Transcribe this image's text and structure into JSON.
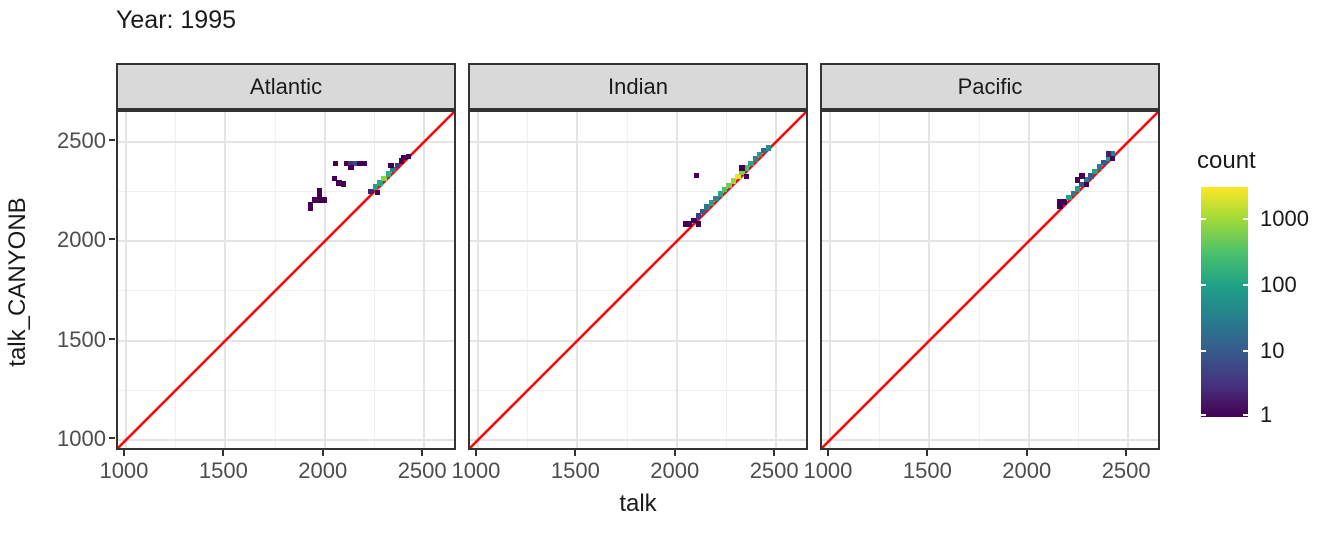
{
  "title": "Year: 1995",
  "axis": {
    "x_title": "talk",
    "y_title": "talk_CANYONB"
  },
  "legend": {
    "title": "count",
    "tick_labels": [
      "1000",
      "100",
      "10",
      "1"
    ]
  },
  "colors": {
    "reference_line": "#f20d0d",
    "strip_fill": "#d9d9d9",
    "panel_border": "#333333",
    "grid_major": "#e4e4e4",
    "grid_minor": "#f0f0f0",
    "tick_text": "#4d4d4d",
    "viridis_min": "#440154",
    "viridis_max": "#fde725"
  },
  "chart_data": {
    "type": "heatmap",
    "variant": "2d binned scatter (geom_bin2d), faceted by ocean",
    "title": "Year: 1995",
    "xlabel": "talk",
    "ylabel": "talk_CANYONB",
    "xlim": [
      960,
      2650
    ],
    "ylim": [
      960,
      2650
    ],
    "x_ticks": [
      1000,
      1500,
      2000,
      2500
    ],
    "y_ticks": [
      1000,
      1500,
      2000,
      2500
    ],
    "x_minor_ticks": [
      1250,
      1750,
      2250
    ],
    "y_minor_ticks": [
      1250,
      1750,
      2250
    ],
    "grid": true,
    "bin_size": 22,
    "reference_line": "y = x",
    "color_scale": {
      "palette": "viridis",
      "label": "count",
      "scale": "log10",
      "ticks": [
        1,
        10,
        100,
        1000
      ],
      "domain": [
        1,
        3000
      ],
      "legend_position": "right"
    },
    "facets": [
      {
        "label": "Atlantic",
        "cells": [
          [
            2055,
            2392,
            1
          ],
          [
            2110,
            2390,
            1
          ],
          [
            2132,
            2390,
            3
          ],
          [
            2154,
            2390,
            6
          ],
          [
            2176,
            2392,
            1
          ],
          [
            2198,
            2392,
            1
          ],
          [
            2132,
            2370,
            1
          ],
          [
            2049,
            2315,
            1
          ],
          [
            2071,
            2293,
            1
          ],
          [
            2093,
            2288,
            1
          ],
          [
            1974,
            2252,
            1
          ],
          [
            1974,
            2230,
            1
          ],
          [
            1951,
            2208,
            1
          ],
          [
            1974,
            2208,
            1
          ],
          [
            1997,
            2208,
            1
          ],
          [
            1929,
            2186,
            1
          ],
          [
            1929,
            2164,
            1
          ],
          [
            2233,
            2250,
            2
          ],
          [
            2255,
            2272,
            90
          ],
          [
            2277,
            2294,
            120
          ],
          [
            2299,
            2316,
            700
          ],
          [
            2321,
            2338,
            150
          ],
          [
            2343,
            2360,
            30
          ],
          [
            2365,
            2382,
            5
          ],
          [
            2387,
            2404,
            1
          ],
          [
            2398,
            2420,
            1
          ],
          [
            2266,
            2245,
            1
          ],
          [
            2332,
            2382,
            1
          ],
          [
            2420,
            2426,
            1
          ]
        ]
      },
      {
        "label": "Indian",
        "cells": [
          [
            2043,
            2087,
            1
          ],
          [
            2065,
            2087,
            1
          ],
          [
            2087,
            2105,
            1
          ],
          [
            2109,
            2127,
            4
          ],
          [
            2131,
            2149,
            10
          ],
          [
            2153,
            2171,
            25
          ],
          [
            2175,
            2193,
            100
          ],
          [
            2197,
            2215,
            40
          ],
          [
            2219,
            2237,
            120
          ],
          [
            2241,
            2259,
            300
          ],
          [
            2263,
            2281,
            500
          ],
          [
            2285,
            2303,
            900
          ],
          [
            2307,
            2325,
            2500
          ],
          [
            2329,
            2347,
            600
          ],
          [
            2351,
            2369,
            300
          ],
          [
            2373,
            2391,
            120
          ],
          [
            2395,
            2413,
            40
          ],
          [
            2417,
            2435,
            100
          ],
          [
            2439,
            2457,
            15
          ],
          [
            2461,
            2470,
            60
          ],
          [
            2109,
            2087,
            1
          ],
          [
            2100,
            2330,
            1
          ],
          [
            2329,
            2369,
            1
          ],
          [
            2351,
            2325,
            1
          ]
        ]
      },
      {
        "label": "Pacific",
        "cells": [
          [
            2158,
            2175,
            1
          ],
          [
            2158,
            2197,
            1
          ],
          [
            2180,
            2197,
            1
          ],
          [
            2202,
            2219,
            100
          ],
          [
            2224,
            2241,
            30
          ],
          [
            2246,
            2263,
            100
          ],
          [
            2268,
            2285,
            8
          ],
          [
            2290,
            2307,
            30
          ],
          [
            2312,
            2329,
            10
          ],
          [
            2334,
            2351,
            100
          ],
          [
            2356,
            2373,
            30
          ],
          [
            2378,
            2395,
            10
          ],
          [
            2400,
            2417,
            100
          ],
          [
            2422,
            2439,
            30
          ],
          [
            2246,
            2307,
            1
          ],
          [
            2268,
            2329,
            1
          ],
          [
            2290,
            2285,
            1
          ],
          [
            2422,
            2417,
            1
          ],
          [
            2400,
            2439,
            2
          ]
        ]
      }
    ]
  }
}
